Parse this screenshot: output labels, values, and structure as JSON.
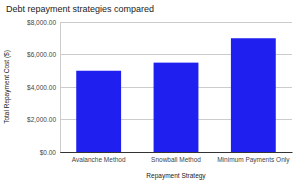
{
  "chart_data": {
    "type": "bar",
    "title": "Debt repayment strategies compared",
    "x_label": "Repayment Strategy",
    "y_label": "Total Repayment Cost ($)",
    "categories": [
      "Avalanche Method",
      "Snowball Method",
      "Minimum Payments Only"
    ],
    "values": [
      5000,
      5500,
      7000
    ],
    "color": "#1f1fef",
    "ylim": [
      0,
      8000
    ],
    "yticks": [
      {
        "value": 0,
        "label": "$0.00"
      },
      {
        "value": 2000,
        "label": "$2,000.00"
      },
      {
        "value": 4000,
        "label": "$4,000.00"
      },
      {
        "value": 6000,
        "label": "$6,000.00"
      },
      {
        "value": 8000,
        "label": "$8,000.00"
      }
    ],
    "grid": true
  }
}
